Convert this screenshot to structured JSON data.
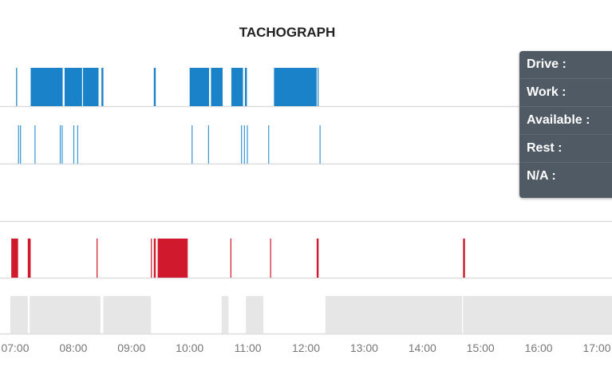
{
  "chart_data": {
    "type": "timeline",
    "title": "TACHOGRAPH",
    "xlabel": "",
    "ylabel": "",
    "x_domain": [
      "06:57",
      "17:47"
    ],
    "x_ticks": [
      "07:00",
      "08:00",
      "09:00",
      "10:00",
      "11:00",
      "12:00",
      "13:00",
      "14:00",
      "15:00",
      "16:00",
      "17:00"
    ],
    "grid": true,
    "series": [
      {
        "key": "drive",
        "color": "#1a82c8",
        "intervals": [
          [
            "07:01",
            "07:02"
          ],
          [
            "07:16",
            "07:49"
          ],
          [
            "07:51",
            "08:09"
          ],
          [
            "08:10",
            "08:26"
          ],
          [
            "08:29",
            "08:31"
          ],
          [
            "09:23",
            "09:25"
          ],
          [
            "10:00",
            "10:20"
          ],
          [
            "10:22",
            "10:34"
          ],
          [
            "10:43",
            "10:55"
          ],
          [
            "10:57",
            "10:59"
          ],
          [
            "11:27",
            "12:11"
          ],
          [
            "12:12",
            "12:13"
          ]
        ]
      },
      {
        "key": "work",
        "color": "#3a97d4",
        "intervals": [
          [
            "07:03",
            "07:04"
          ],
          [
            "07:05",
            "07:06"
          ],
          [
            "07:20",
            "07:21"
          ],
          [
            "07:46",
            "07:47"
          ],
          [
            "07:48",
            "07:49"
          ],
          [
            "08:00",
            "08:01"
          ],
          [
            "08:04",
            "08:05"
          ],
          [
            "10:02",
            "10:03"
          ],
          [
            "10:19",
            "10:20"
          ],
          [
            "10:53",
            "10:54"
          ],
          [
            "10:56",
            "10:57"
          ],
          [
            "10:59",
            "11:00"
          ],
          [
            "11:21",
            "11:22"
          ],
          [
            "12:14",
            "12:15"
          ]
        ]
      },
      {
        "key": "available",
        "color": "#3a97d4",
        "intervals": []
      },
      {
        "key": "rest",
        "color": "#d0192c",
        "intervals": [
          [
            "06:56",
            "07:03"
          ],
          [
            "07:13",
            "07:16"
          ],
          [
            "08:24",
            "08:25"
          ],
          [
            "09:20",
            "09:21"
          ],
          [
            "09:23",
            "09:25"
          ],
          [
            "09:27",
            "09:58"
          ],
          [
            "10:42",
            "10:43"
          ],
          [
            "11:23",
            "11:24"
          ],
          [
            "12:11",
            "12:13"
          ],
          [
            "14:42",
            "14:44"
          ]
        ]
      },
      {
        "key": "na",
        "color": "#e6e6e6",
        "intervals": [
          [
            "06:55",
            "07:13"
          ],
          [
            "07:15",
            "08:28"
          ],
          [
            "08:31",
            "09:20"
          ],
          [
            "10:33",
            "10:40"
          ],
          [
            "10:58",
            "11:16"
          ],
          [
            "12:20",
            "14:41"
          ],
          [
            "14:42",
            "17:47"
          ]
        ]
      }
    ]
  },
  "tooltip": {
    "rows": [
      {
        "label": "Drive :"
      },
      {
        "label": "Work :"
      },
      {
        "label": "Available :"
      },
      {
        "label": "Rest :"
      },
      {
        "label": "N/A :"
      }
    ]
  }
}
